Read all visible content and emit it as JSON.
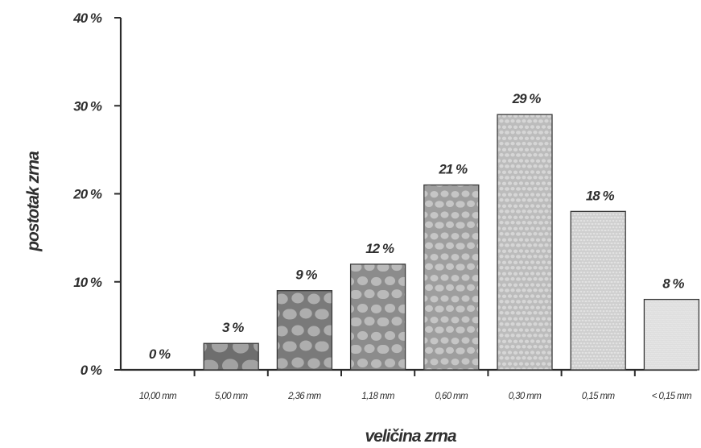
{
  "chart_data": {
    "type": "bar",
    "title": "",
    "xlabel": "veličina zrna",
    "ylabel": "postotak zrna",
    "categories": [
      "10,00 mm",
      "5,00 mm",
      "2,36 mm",
      "1,18 mm",
      "0,60 mm",
      "0,30 mm",
      "0,15 mm",
      "< 0,15 mm"
    ],
    "values": [
      0,
      3,
      9,
      12,
      21,
      29,
      18,
      8
    ],
    "value_labels": [
      "0 %",
      "3 %",
      "9 %",
      "12 %",
      "21 %",
      "29 %",
      "18 %",
      "8 %"
    ],
    "ylim": [
      0,
      40
    ],
    "yticks": [
      0,
      10,
      20,
      30,
      40
    ],
    "ytick_labels": [
      "0 %",
      "10 %",
      "20 %",
      "30 %",
      "40 %"
    ],
    "grid": false,
    "legend": "none"
  },
  "colors": {
    "axis": "#2b2b2b",
    "text": "#2f2f2f",
    "bar_fills": [
      "#8a8a8a",
      "#6e6e6e",
      "#7a7a7a",
      "#8c8c8c",
      "#9e9e9e",
      "#bcbcbc",
      "#cfcfcf",
      "#dedede"
    ],
    "bar_stones": [
      "#b8b8b8",
      "#a2a2a2",
      "#aeaeae",
      "#bababa",
      "#c6c6c6",
      "#d6d6d6",
      "#e2e2e2",
      "#ebebeb"
    ]
  }
}
